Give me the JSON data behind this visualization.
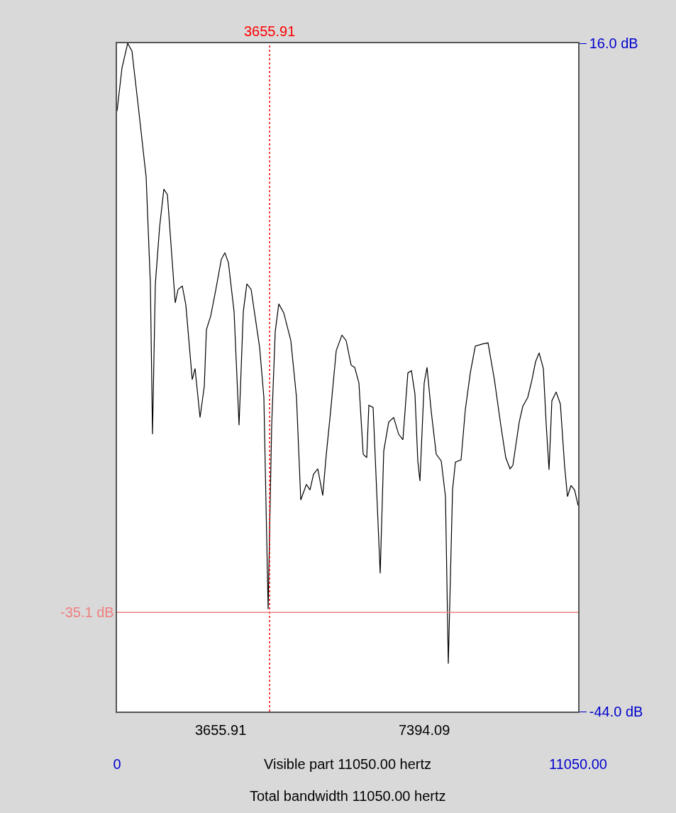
{
  "chart_data": {
    "type": "line",
    "x": [
      0,
      119,
      255,
      357,
      510,
      697,
      799,
      850,
      918,
      1020,
      1122,
      1207,
      1394,
      1462,
      1564,
      1649,
      1802,
      1870,
      1989,
      2091,
      2142,
      2244,
      2363,
      2499,
      2584,
      2669,
      2805,
      2924,
      3026,
      3111,
      3213,
      3417,
      3519,
      3621,
      3706,
      3791,
      3876,
      3995,
      4165,
      4301,
      4403,
      4539,
      4624,
      4709,
      4811,
      4930,
      5015,
      5117,
      5253,
      5389,
      5491,
      5610,
      5695,
      5797,
      5899,
      5984,
      6035,
      6137,
      6307,
      6392,
      6511,
      6630,
      6749,
      6851,
      6970,
      7055,
      7140,
      7208,
      7259,
      7361,
      7429,
      7531,
      7650,
      7769,
      7871,
      7939,
      8041,
      8109,
      8245,
      8347,
      8466,
      8585,
      8755,
      8891,
      9044,
      9197,
      9316,
      9418,
      9486,
      9639,
      9724,
      9843,
      9945,
      10030,
      10115,
      10217,
      10285,
      10353,
      10421,
      10523,
      10625,
      10727,
      10795,
      10880,
      10965,
      11050
    ],
    "series": [
      {
        "color": "#000000",
        "values": [
          9.9,
          13.8,
          16.0,
          15.3,
          10.3,
          4.0,
          -5.6,
          -19.1,
          -5.6,
          -0.5,
          2.9,
          2.4,
          -7.3,
          -6.1,
          -5.8,
          -7.5,
          -14.2,
          -13.2,
          -17.6,
          -14.8,
          -9.7,
          -8.5,
          -6.2,
          -3.4,
          -2.8,
          -3.7,
          -8.1,
          -18.3,
          -8.1,
          -5.6,
          -6.1,
          -11.3,
          -15.8,
          -34.8,
          -18.3,
          -9.9,
          -7.4,
          -8.2,
          -10.7,
          -15.8,
          -25.0,
          -23.6,
          -24.1,
          -22.7,
          -22.2,
          -24.6,
          -20.9,
          -17.1,
          -11.6,
          -10.2,
          -10.7,
          -12.9,
          -13.1,
          -14.5,
          -20.9,
          -21.2,
          -16.5,
          -16.7,
          -31.6,
          -20.6,
          -18.0,
          -17.6,
          -19.1,
          -19.6,
          -13.6,
          -13.4,
          -15.5,
          -21.5,
          -23.3,
          -14.5,
          -13.1,
          -17.1,
          -20.9,
          -21.5,
          -24.7,
          -39.7,
          -24.1,
          -21.6,
          -21.4,
          -16.9,
          -13.6,
          -11.2,
          -11.0,
          -10.9,
          -14.2,
          -18.3,
          -21.2,
          -22.2,
          -21.9,
          -18.0,
          -16.6,
          -15.8,
          -14.2,
          -12.6,
          -11.8,
          -13.2,
          -18.2,
          -22.3,
          -16.1,
          -15.3,
          -16.4,
          -22.0,
          -24.7,
          -23.7,
          -24.1,
          -25.5
        ]
      }
    ],
    "xlim": [
      0,
      11050
    ],
    "xticks": [
      {
        "value": 0,
        "label": "0"
      },
      {
        "value": 11050,
        "label": "11050.00"
      }
    ],
    "ylim": [
      -44.0,
      16.0
    ],
    "yticks": [
      {
        "value": 16.0,
        "label": "16.0 dB"
      },
      {
        "value": -44.0,
        "label": "-44.0 dB"
      }
    ],
    "ref_lines": [
      {
        "axis": "x",
        "value": 3655.91,
        "label": "3655.91",
        "color": "#ff0000",
        "line_style": "dotted"
      },
      {
        "axis": "y",
        "value": -35.1,
        "label": "-35.1 dB",
        "color": "#f08080",
        "line_style": "solid"
      }
    ],
    "annotations": [
      "3655.91",
      "7394.09",
      "Visible part 11050.00 hertz",
      "Total bandwidth 11050.00 hertz"
    ],
    "marker": "none",
    "line_style": "solid"
  }
}
